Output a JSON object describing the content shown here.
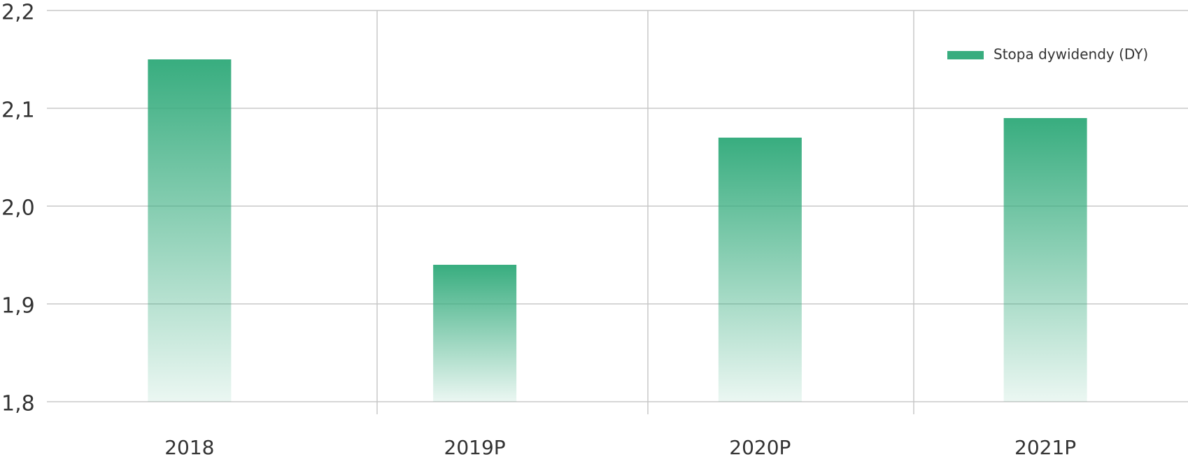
{
  "chart_data": {
    "type": "bar",
    "categories": [
      "2018",
      "2019P",
      "2020P",
      "2021P"
    ],
    "series": [
      {
        "name": "Stopa dywidendy (DY)",
        "color": "#38ad7f",
        "values": [
          2.15,
          1.94,
          2.07,
          2.09
        ]
      }
    ],
    "ylim": [
      1.8,
      2.2
    ],
    "yticks": [
      {
        "value": 1.8,
        "label": "1,8"
      },
      {
        "value": 1.9,
        "label": "1,9"
      },
      {
        "value": 2.0,
        "label": "2,0"
      },
      {
        "value": 2.1,
        "label": "2,1"
      },
      {
        "value": 2.2,
        "label": "2,2"
      }
    ],
    "grid": true,
    "legend": "top-right"
  }
}
